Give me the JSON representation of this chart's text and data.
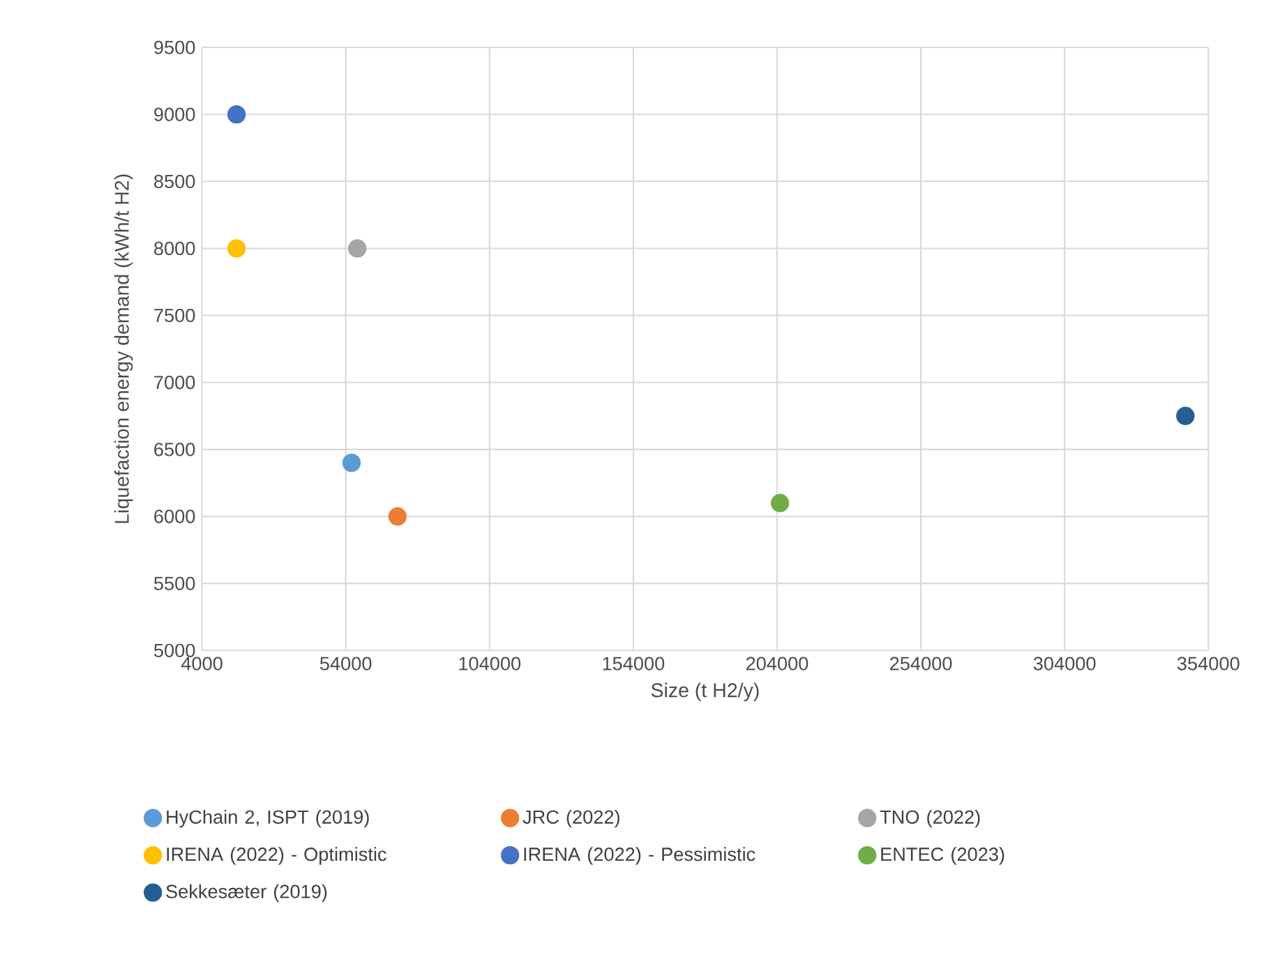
{
  "chart_data": {
    "type": "scatter",
    "xlabel": "Size (t H2/y)",
    "ylabel": "Liquefaction energy demand (kWh/t H2)",
    "xlim": [
      4000,
      354000
    ],
    "xticks": [
      4000,
      54000,
      104000,
      154000,
      204000,
      254000,
      304000,
      354000
    ],
    "ylim": [
      5000,
      9500
    ],
    "yticks": [
      5000,
      5500,
      6000,
      6500,
      7000,
      7500,
      8000,
      8500,
      9000,
      9500
    ],
    "grid": true,
    "legend": "bottom",
    "marker": "circle",
    "series": [
      {
        "name": "HyChain 2, ISPT (2019)",
        "color": "#5b9bd5",
        "x": [
          56000
        ],
        "values": [
          6400
        ]
      },
      {
        "name": "JRC (2022)",
        "color": "#ed7d31",
        "x": [
          72000
        ],
        "values": [
          6000
        ]
      },
      {
        "name": "TNO (2022)",
        "color": "#a5a5a5",
        "x": [
          58000
        ],
        "values": [
          8000
        ]
      },
      {
        "name": "IRENA (2022) - Optimistic",
        "color": "#ffc000",
        "x": [
          16000
        ],
        "values": [
          8000
        ]
      },
      {
        "name": "IRENA (2022) - Pessimistic",
        "color": "#4472c4",
        "x": [
          16000
        ],
        "values": [
          9000
        ]
      },
      {
        "name": "ENTEC (2023)",
        "color": "#70ad47",
        "x": [
          205000
        ],
        "values": [
          6100
        ]
      },
      {
        "name": "Sekkesæter (2019)",
        "color": "#255e91",
        "x": [
          346000
        ],
        "values": [
          6750
        ]
      }
    ]
  }
}
